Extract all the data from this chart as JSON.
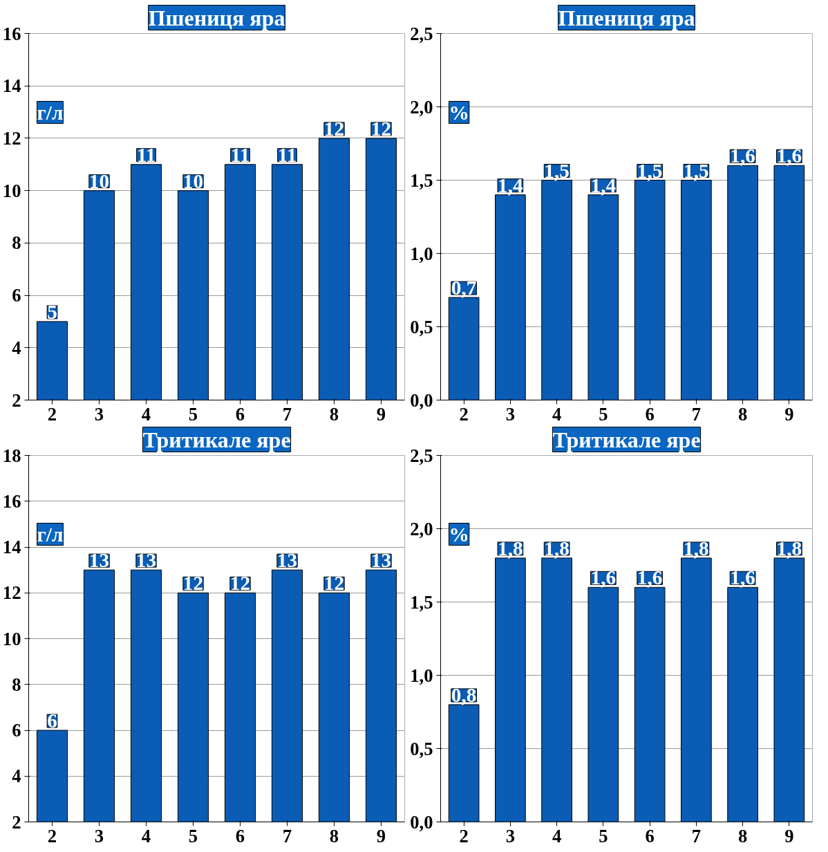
{
  "chart_data": [
    {
      "type": "bar",
      "title": "Пшениця яра",
      "annotations": [
        "г/л"
      ],
      "categories": [
        "2",
        "3",
        "4",
        "5",
        "6",
        "7",
        "8",
        "9"
      ],
      "series": [
        {
          "color": "#0a5cb4",
          "values": [
            5,
            10,
            11,
            10,
            11,
            11,
            12,
            12
          ]
        }
      ],
      "ylim": [
        2,
        16
      ],
      "yticks": [
        2,
        4,
        6,
        8,
        10,
        12,
        14,
        16
      ],
      "grid": "y",
      "data_labels": true
    },
    {
      "type": "bar",
      "title": "Пшениця яра",
      "annotations": [
        "%"
      ],
      "categories": [
        "2",
        "3",
        "4",
        "5",
        "6",
        "7",
        "8",
        "9"
      ],
      "series": [
        {
          "color": "#0a5cb4",
          "values": [
            0.7,
            1.4,
            1.5,
            1.4,
            1.5,
            1.5,
            1.6,
            1.6
          ],
          "value_labels": [
            "0,7",
            "1,4",
            "1,5",
            "1,4",
            "1,5",
            "1,5",
            "1,6",
            "1,6"
          ]
        }
      ],
      "ylim": [
        0,
        2.5
      ],
      "yticks": [
        {
          "value": 0,
          "label": "0,0"
        },
        {
          "value": 0.5,
          "label": "0,5"
        },
        {
          "value": 1,
          "label": "1,0"
        },
        {
          "value": 1.5,
          "label": "1,5"
        },
        {
          "value": 2,
          "label": "2,0"
        },
        {
          "value": 2.5,
          "label": "2,5"
        }
      ],
      "grid": "y"
    },
    {
      "type": "bar",
      "title": "Тритикале яре",
      "annotations": [
        "г/л"
      ],
      "categories": [
        "2",
        "3",
        "4",
        "5",
        "6",
        "7",
        "8",
        "9"
      ],
      "series": [
        {
          "color": "#0a5cb4",
          "values": [
            6,
            13,
            13,
            12,
            12,
            13,
            12,
            13
          ]
        }
      ],
      "ylim": [
        2,
        18
      ],
      "yticks": [
        2,
        4,
        6,
        8,
        10,
        12,
        14,
        16,
        18
      ],
      "grid": "y",
      "data_labels": true
    },
    {
      "type": "bar",
      "title": "Тритикале яре",
      "annotations": [
        "%"
      ],
      "categories": [
        "2",
        "3",
        "4",
        "5",
        "6",
        "7",
        "8",
        "9"
      ],
      "series": [
        {
          "color": "#0a5cb4",
          "values": [
            0.8,
            1.8,
            1.8,
            1.6,
            1.6,
            1.8,
            1.6,
            1.8
          ],
          "value_labels": [
            "0,8",
            "1,8",
            "1,8",
            "1,6",
            "1,6",
            "1,8",
            "1,6",
            "1,8"
          ]
        }
      ],
      "ylim": [
        0,
        2.5
      ],
      "yticks": [
        {
          "value": 0,
          "label": "0,0"
        },
        {
          "value": 0.5,
          "label": "0,5"
        },
        {
          "value": 1,
          "label": "1,0"
        },
        {
          "value": 1.5,
          "label": "1,5"
        },
        {
          "value": 2,
          "label": "2,0"
        },
        {
          "value": 2.5,
          "label": "2,5"
        }
      ],
      "grid": "y"
    }
  ]
}
